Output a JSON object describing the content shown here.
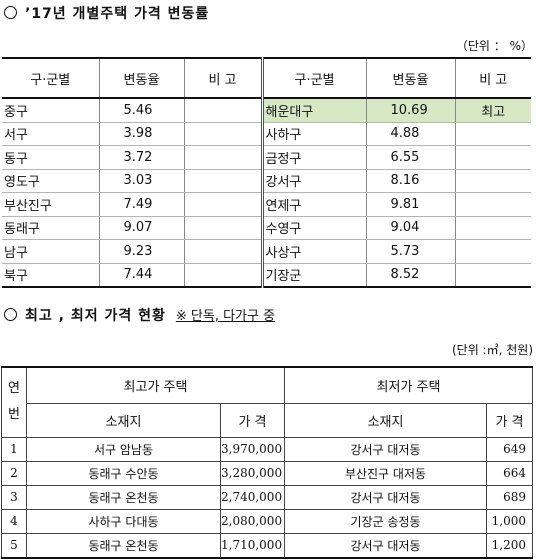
{
  "section1": {
    "title": "’17년 개별주택 가격 변동률",
    "unit": "（단위 ： %）",
    "headers": {
      "district": "구·군별",
      "change": "변동율",
      "remark": "비 고"
    },
    "left": [
      {
        "name": "중구",
        "value": "5.46",
        "remark": ""
      },
      {
        "name": "서구",
        "value": "3.98",
        "remark": ""
      },
      {
        "name": "동구",
        "value": "3.72",
        "remark": ""
      },
      {
        "name": "영도구",
        "value": "3.03",
        "remark": ""
      },
      {
        "name": "부산진구",
        "value": "7.49",
        "remark": ""
      },
      {
        "name": "동래구",
        "value": "9.07",
        "remark": ""
      },
      {
        "name": "남구",
        "value": "9.23",
        "remark": ""
      },
      {
        "name": "북구",
        "value": "7.44",
        "remark": ""
      }
    ],
    "right": [
      {
        "name": "해운대구",
        "value": "10.69",
        "remark": "최고"
      },
      {
        "name": "사하구",
        "value": "4.88",
        "remark": ""
      },
      {
        "name": "금정구",
        "value": "6.55",
        "remark": ""
      },
      {
        "name": "강서구",
        "value": "8.16",
        "remark": ""
      },
      {
        "name": "연제구",
        "value": "9.81",
        "remark": ""
      },
      {
        "name": "수영구",
        "value": "9.04",
        "remark": ""
      },
      {
        "name": "사상구",
        "value": "5.73",
        "remark": ""
      },
      {
        "name": "기장군",
        "value": "8.52",
        "remark": ""
      }
    ],
    "highlight_color": "#d7e8c4"
  },
  "section2": {
    "title": "최고 , 최저 가격 현황",
    "note": "※ 단독, 다가구 중",
    "unit": "(단위 :㎡, 천원)",
    "headers": {
      "index": "연번",
      "highest": "최고가 주택",
      "lowest": "최저가 주택",
      "location": "소재지",
      "price": "가 격"
    },
    "rows": [
      {
        "no": "1",
        "high_loc": "서구 암남동",
        "high_price": "3,970,000",
        "low_loc": "강서구 대저동",
        "low_price": "649"
      },
      {
        "no": "2",
        "high_loc": "동래구 수안동",
        "high_price": "3,280,000",
        "low_loc": "부산진구 대저동",
        "low_price": "664"
      },
      {
        "no": "3",
        "high_loc": "동래구 온천동",
        "high_price": "2,740,000",
        "low_loc": "강서구 대저동",
        "low_price": "689"
      },
      {
        "no": "4",
        "high_loc": "사하구 다대동",
        "high_price": "2,080,000",
        "low_loc": "기장군 송정동",
        "low_price": "1,000"
      },
      {
        "no": "5",
        "high_loc": "동래구 온천동",
        "high_price": "1,710,000",
        "low_loc": "강서구 대저동",
        "low_price": "1,200"
      }
    ]
  }
}
